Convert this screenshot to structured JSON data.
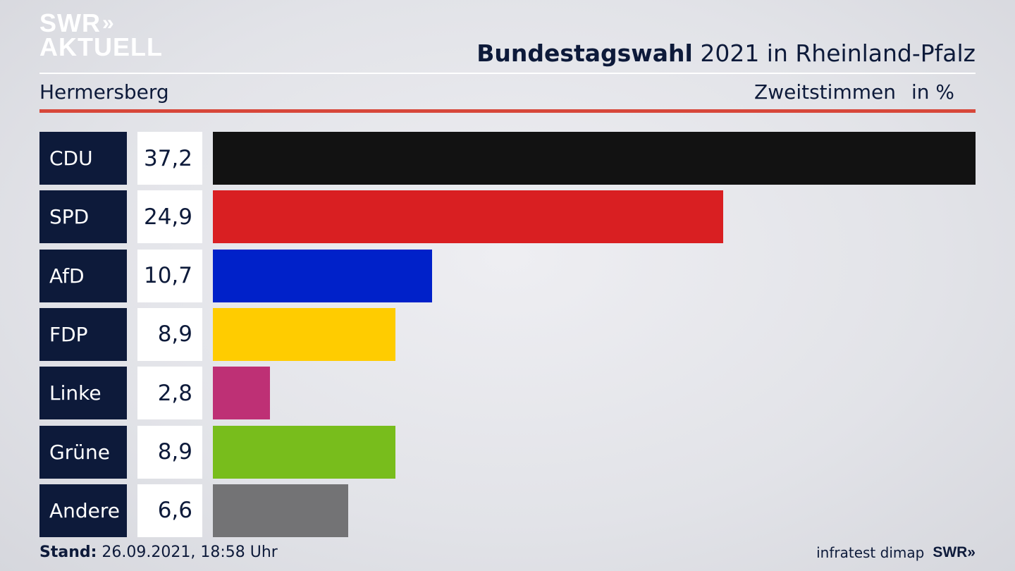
{
  "logo": {
    "line1": "SWR",
    "chevrons": "»",
    "line2": "AKTUELL"
  },
  "header": {
    "title_bold": "Bundestagswahl",
    "title_rest": " 2021 in Rheinland-Pfalz",
    "location": "Hermersberg",
    "measure": "Zweitstimmen",
    "unit": "in %"
  },
  "footer": {
    "stand_label": "Stand:",
    "stand_value": " 26.09.2021, 18:58 Uhr",
    "source": "infratest dimap",
    "brand": "SWR»"
  },
  "chart_data": {
    "type": "bar",
    "orientation": "horizontal",
    "xlim": [
      0,
      37.2
    ],
    "categories": [
      "CDU",
      "SPD",
      "AfD",
      "FDP",
      "Linke",
      "Grüne",
      "Andere"
    ],
    "values": [
      37.2,
      24.9,
      10.7,
      8.9,
      2.8,
      8.9,
      6.6
    ],
    "labels": [
      "37,2",
      "24,9",
      "10,7",
      "8,9",
      "2,8",
      "8,9",
      "6,6"
    ],
    "colors": [
      "#121212",
      "#d91f22",
      "#0021c9",
      "#ffcc00",
      "#be3075",
      "#78bd1c",
      "#737375"
    ]
  }
}
